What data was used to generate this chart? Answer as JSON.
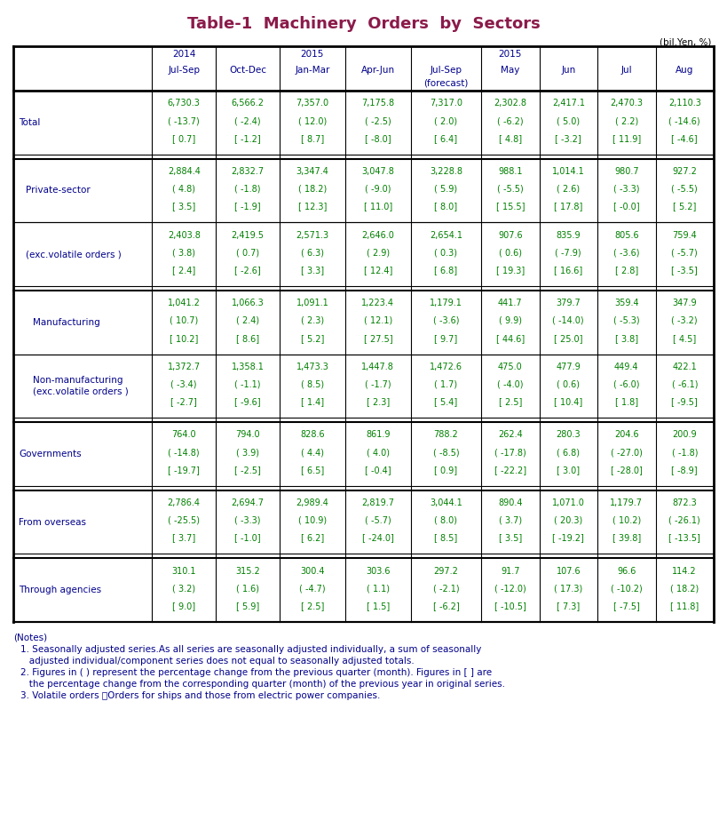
{
  "title": "Table-1  Machinery  Orders  by  Sectors",
  "title_color": "#8B1A4A",
  "unit_label": "(bil.Yen, %)",
  "header_color": "#00008B",
  "data_color": "#008000",
  "label_color": "#00008B",
  "col_header_texts": [
    [
      "2014",
      "Jul-Sep",
      ""
    ],
    [
      "",
      "Oct-Dec",
      ""
    ],
    [
      "2015",
      "Jan-Mar",
      ""
    ],
    [
      "",
      "Apr-Jun",
      ""
    ],
    [
      "",
      "Jul-Sep",
      "(forecast)"
    ],
    [
      "2015",
      "May",
      ""
    ],
    [
      "",
      "Jun",
      ""
    ],
    [
      "",
      "Jul",
      ""
    ],
    [
      "",
      "Aug",
      ""
    ]
  ],
  "rows": [
    {
      "label": "Total",
      "label2": "",
      "indent": 0,
      "values": [
        [
          "6,730.3",
          "( -13.7)",
          "[ 0.7]"
        ],
        [
          "6,566.2",
          "( -2.4)",
          "[ -1.2]"
        ],
        [
          "7,357.0",
          "( 12.0)",
          "[ 8.7]"
        ],
        [
          "7,175.8",
          "( -2.5)",
          "[ -8.0]"
        ],
        [
          "7,317.0",
          "( 2.0)",
          "[ 6.4]"
        ],
        [
          "2,302.8",
          "( -6.2)",
          "[ 4.8]"
        ],
        [
          "2,417.1",
          "( 5.0)",
          "[ -3.2]"
        ],
        [
          "2,470.3",
          "( 2.2)",
          "[ 11.9]"
        ],
        [
          "2,110.3",
          "( -14.6)",
          "[ -4.6]"
        ]
      ],
      "section_break_before": true
    },
    {
      "label": "Private-sector",
      "label2": "",
      "indent": 1,
      "values": [
        [
          "2,884.4",
          "( 4.8)",
          "[ 3.5]"
        ],
        [
          "2,832.7",
          "( -1.8)",
          "[ -1.9]"
        ],
        [
          "3,347.4",
          "( 18.2)",
          "[ 12.3]"
        ],
        [
          "3,047.8",
          "( -9.0)",
          "[ 11.0]"
        ],
        [
          "3,228.8",
          "( 5.9)",
          "[ 8.0]"
        ],
        [
          "988.1",
          "( -5.5)",
          "[ 15.5]"
        ],
        [
          "1,014.1",
          "( 2.6)",
          "[ 17.8]"
        ],
        [
          "980.7",
          "( -3.3)",
          "[ -0.0]"
        ],
        [
          "927.2",
          "( -5.5)",
          "[ 5.2]"
        ]
      ],
      "section_break_before": true
    },
    {
      "label": "(exc.volatile orders )",
      "label2": "",
      "indent": 1,
      "values": [
        [
          "2,403.8",
          "( 3.8)",
          "[ 2.4]"
        ],
        [
          "2,419.5",
          "( 0.7)",
          "[ -2.6]"
        ],
        [
          "2,571.3",
          "( 6.3)",
          "[ 3.3]"
        ],
        [
          "2,646.0",
          "( 2.9)",
          "[ 12.4]"
        ],
        [
          "2,654.1",
          "( 0.3)",
          "[ 6.8]"
        ],
        [
          "907.6",
          "( 0.6)",
          "[ 19.3]"
        ],
        [
          "835.9",
          "( -7.9)",
          "[ 16.6]"
        ],
        [
          "805.6",
          "( -3.6)",
          "[ 2.8]"
        ],
        [
          "759.4",
          "( -5.7)",
          "[ -3.5]"
        ]
      ],
      "section_break_before": false
    },
    {
      "label": "Manufacturing",
      "label2": "",
      "indent": 2,
      "values": [
        [
          "1,041.2",
          "( 10.7)",
          "[ 10.2]"
        ],
        [
          "1,066.3",
          "( 2.4)",
          "[ 8.6]"
        ],
        [
          "1,091.1",
          "( 2.3)",
          "[ 5.2]"
        ],
        [
          "1,223.4",
          "( 12.1)",
          "[ 27.5]"
        ],
        [
          "1,179.1",
          "( -3.6)",
          "[ 9.7]"
        ],
        [
          "441.7",
          "( 9.9)",
          "[ 44.6]"
        ],
        [
          "379.7",
          "( -14.0)",
          "[ 25.0]"
        ],
        [
          "359.4",
          "( -5.3)",
          "[ 3.8]"
        ],
        [
          "347.9",
          "( -3.2)",
          "[ 4.5]"
        ]
      ],
      "section_break_before": true
    },
    {
      "label": "Non-manufacturing",
      "label2": "(exc.volatile orders )",
      "indent": 2,
      "values": [
        [
          "1,372.7",
          "( -3.4)",
          "[ -2.7]"
        ],
        [
          "1,358.1",
          "( -1.1)",
          "[ -9.6]"
        ],
        [
          "1,473.3",
          "( 8.5)",
          "[ 1.4]"
        ],
        [
          "1,447.8",
          "( -1.7)",
          "[ 2.3]"
        ],
        [
          "1,472.6",
          "( 1.7)",
          "[ 5.4]"
        ],
        [
          "475.0",
          "( -4.0)",
          "[ 2.5]"
        ],
        [
          "477.9",
          "( 0.6)",
          "[ 10.4]"
        ],
        [
          "449.4",
          "( -6.0)",
          "[ 1.8]"
        ],
        [
          "422.1",
          "( -6.1)",
          "[ -9.5]"
        ]
      ],
      "section_break_before": false
    },
    {
      "label": "Governments",
      "label2": "",
      "indent": 0,
      "values": [
        [
          "764.0",
          "( -14.8)",
          "[ -19.7]"
        ],
        [
          "794.0",
          "( 3.9)",
          "[ -2.5]"
        ],
        [
          "828.6",
          "( 4.4)",
          "[ 6.5]"
        ],
        [
          "861.9",
          "( 4.0)",
          "[ -0.4]"
        ],
        [
          "788.2",
          "( -8.5)",
          "[ 0.9]"
        ],
        [
          "262.4",
          "( -17.8)",
          "[ -22.2]"
        ],
        [
          "280.3",
          "( 6.8)",
          "[ 3.0]"
        ],
        [
          "204.6",
          "( -27.0)",
          "[ -28.0]"
        ],
        [
          "200.9",
          "( -1.8)",
          "[ -8.9]"
        ]
      ],
      "section_break_before": true
    },
    {
      "label": "From overseas",
      "label2": "",
      "indent": 0,
      "values": [
        [
          "2,786.4",
          "( -25.5)",
          "[ 3.7]"
        ],
        [
          "2,694.7",
          "( -3.3)",
          "[ -1.0]"
        ],
        [
          "2,989.4",
          "( 10.9)",
          "[ 6.2]"
        ],
        [
          "2,819.7",
          "( -5.7)",
          "[ -24.0]"
        ],
        [
          "3,044.1",
          "( 8.0)",
          "[ 8.5]"
        ],
        [
          "890.4",
          "( 3.7)",
          "[ 3.5]"
        ],
        [
          "1,071.0",
          "( 20.3)",
          "[ -19.2]"
        ],
        [
          "1,179.7",
          "( 10.2)",
          "[ 39.8]"
        ],
        [
          "872.3",
          "( -26.1)",
          "[ -13.5]"
        ]
      ],
      "section_break_before": true
    },
    {
      "label": "Through agencies",
      "label2": "",
      "indent": 0,
      "values": [
        [
          "310.1",
          "( 3.2)",
          "[ 9.0]"
        ],
        [
          "315.2",
          "( 1.6)",
          "[ 5.9]"
        ],
        [
          "300.4",
          "( -4.7)",
          "[ 2.5]"
        ],
        [
          "303.6",
          "( 1.1)",
          "[ 1.5]"
        ],
        [
          "297.2",
          "( -2.1)",
          "[ -6.2]"
        ],
        [
          "91.7",
          "( -12.0)",
          "[ -10.5]"
        ],
        [
          "107.6",
          "( 17.3)",
          "[ 7.3]"
        ],
        [
          "96.6",
          "( -10.2)",
          "[ -7.5]"
        ],
        [
          "114.2",
          "( 18.2)",
          "[ 11.8]"
        ]
      ],
      "section_break_before": true
    }
  ],
  "notes_line1": "(Notes)",
  "notes": [
    "1. Seasonally adjusted series.As all series are seasonally adjusted individually, a sum of seasonally",
    "   adjusted individual/component series does not equal to seasonally adjusted totals.",
    "2. Figures in ( ) represent the percentage change from the previous quarter (month). Figures in [ ] are",
    "   the percentage change from the corresponding quarter (month) of the previous year in original series.",
    "3. Volatile orders ：Orders for ships and those from electric power companies."
  ]
}
